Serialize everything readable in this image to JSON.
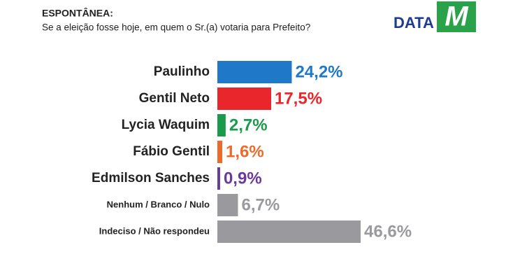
{
  "chart_data": {
    "type": "hbar",
    "title": "ESPONTÂNEA:",
    "subtitle": "Se a eleição fosse hoje, em quem o Sr.(a) votaria para Prefeito?",
    "logo": {
      "text": "DATA",
      "mark": "M"
    },
    "categories": [
      "Paulinho",
      "Gentil Neto",
      "Lycia Waquim",
      "Fábio Gentil",
      "Edmilson Sanches",
      "Nenhum / Branco / Nulo",
      "Indeciso / Não respondeu"
    ],
    "values": [
      24.2,
      17.5,
      2.7,
      1.6,
      0.9,
      6.7,
      46.6
    ],
    "value_labels": [
      "24,2%",
      "17,5%",
      "2,7%",
      "1,6%",
      "0,9%",
      "6,7%",
      "46,6%"
    ],
    "colors": [
      "#1f78c8",
      "#e8262b",
      "#1a9a4a",
      "#ee6a2a",
      "#6a3a9a",
      "#9a9a9e",
      "#9a9a9e"
    ]
  }
}
